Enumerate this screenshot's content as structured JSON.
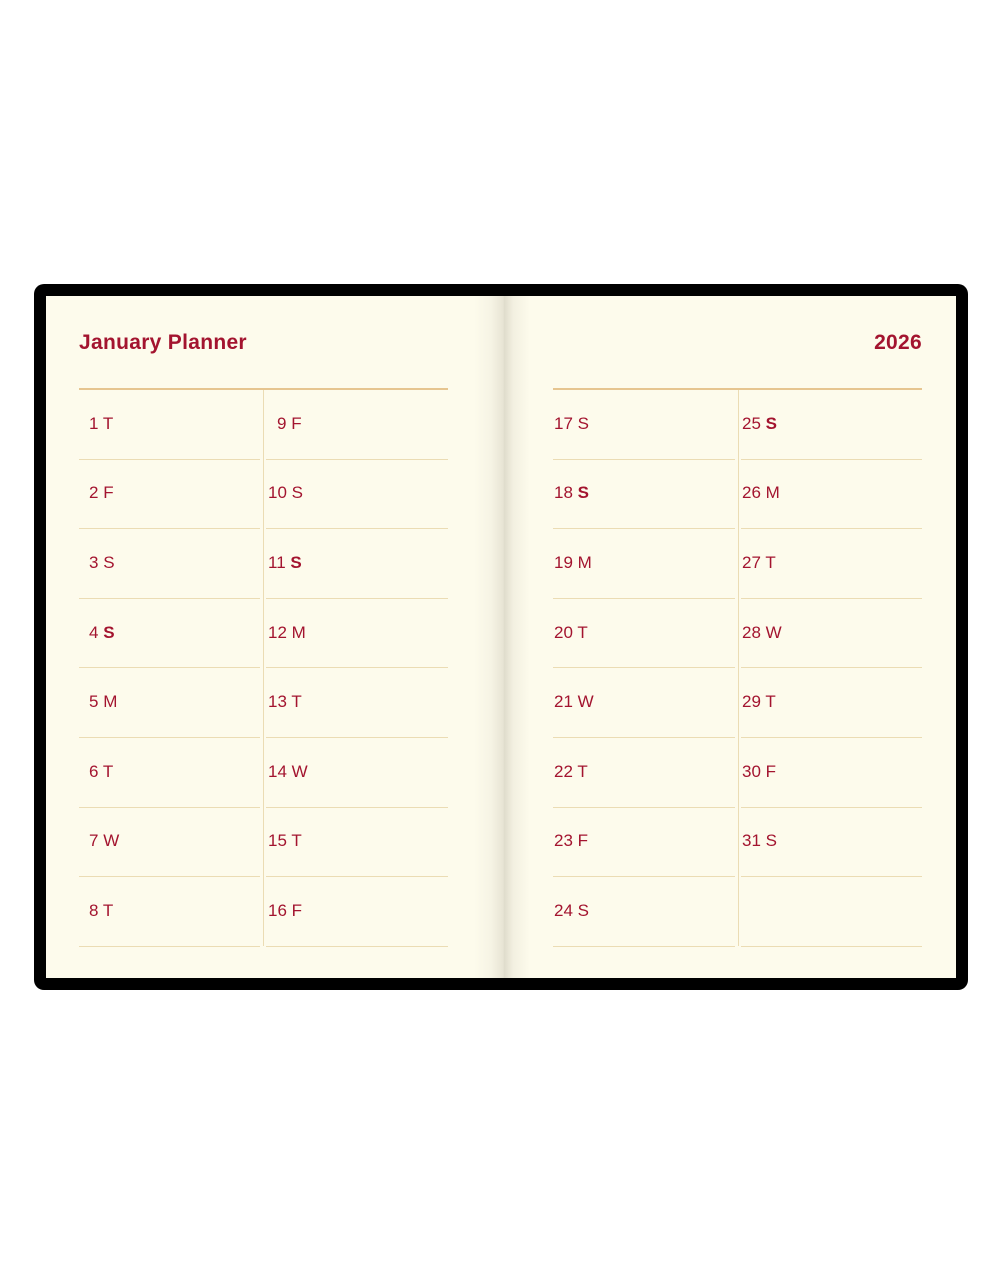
{
  "header": {
    "title": "January Planner",
    "year": "2026"
  },
  "colors": {
    "accent": "#a3142f",
    "page": "#fdfbec",
    "rule": "#e6c590",
    "cover": "#000000"
  },
  "columns": [
    [
      {
        "num": "1",
        "day": "T",
        "bold": false
      },
      {
        "num": "2",
        "day": "F",
        "bold": false
      },
      {
        "num": "3",
        "day": "S",
        "bold": false
      },
      {
        "num": "4",
        "day": "S",
        "bold": true
      },
      {
        "num": "5",
        "day": "M",
        "bold": false
      },
      {
        "num": "6",
        "day": "T",
        "bold": false
      },
      {
        "num": "7",
        "day": "W",
        "bold": false
      },
      {
        "num": "8",
        "day": "T",
        "bold": false
      }
    ],
    [
      {
        "num": "9",
        "day": "F",
        "bold": false
      },
      {
        "num": "10",
        "day": "S",
        "bold": false
      },
      {
        "num": "11",
        "day": "S",
        "bold": true
      },
      {
        "num": "12",
        "day": "M",
        "bold": false
      },
      {
        "num": "13",
        "day": "T",
        "bold": false
      },
      {
        "num": "14",
        "day": "W",
        "bold": false
      },
      {
        "num": "15",
        "day": "T",
        "bold": false
      },
      {
        "num": "16",
        "day": "F",
        "bold": false
      }
    ],
    [
      {
        "num": "17",
        "day": "S",
        "bold": false
      },
      {
        "num": "18",
        "day": "S",
        "bold": true
      },
      {
        "num": "19",
        "day": "M",
        "bold": false
      },
      {
        "num": "20",
        "day": "T",
        "bold": false
      },
      {
        "num": "21",
        "day": "W",
        "bold": false
      },
      {
        "num": "22",
        "day": "T",
        "bold": false
      },
      {
        "num": "23",
        "day": "F",
        "bold": false
      },
      {
        "num": "24",
        "day": "S",
        "bold": false
      }
    ],
    [
      {
        "num": "25",
        "day": "S",
        "bold": true
      },
      {
        "num": "26",
        "day": "M",
        "bold": false
      },
      {
        "num": "27",
        "day": "T",
        "bold": false
      },
      {
        "num": "28",
        "day": "W",
        "bold": false
      },
      {
        "num": "29",
        "day": "T",
        "bold": false
      },
      {
        "num": "30",
        "day": "F",
        "bold": false
      },
      {
        "num": "31",
        "day": "S",
        "bold": false
      }
    ]
  ]
}
